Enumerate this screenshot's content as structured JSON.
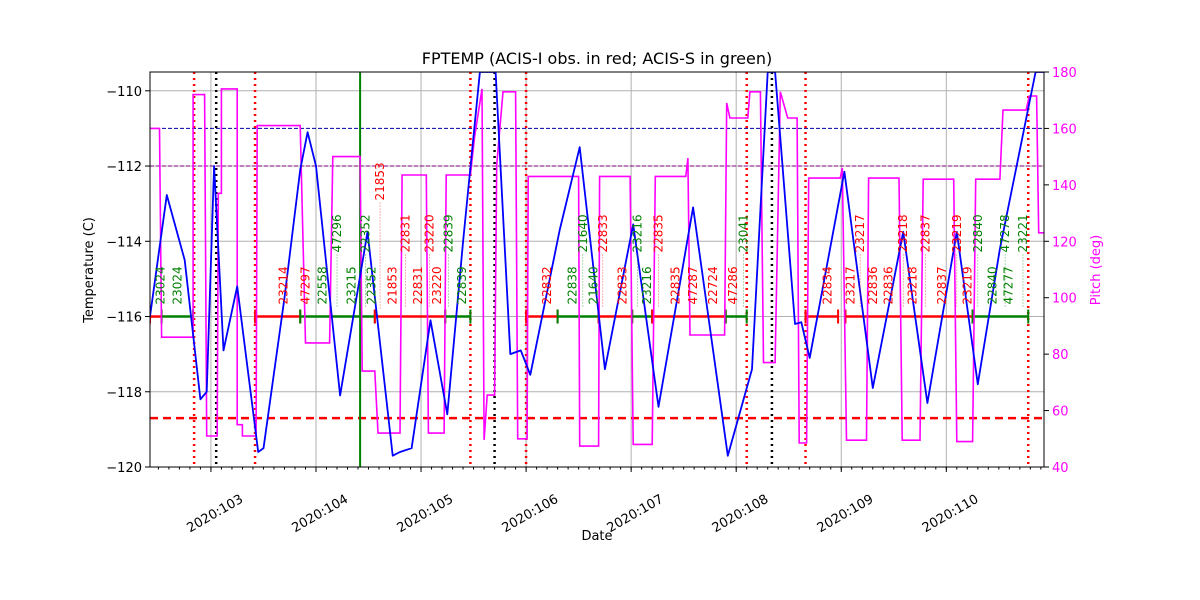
{
  "chart_data": {
    "type": "line",
    "title": "FPTEMP (ACIS-I obs. in red; ACIS-S in green)",
    "xlabel": "Date",
    "ylabel": "Temperature (C)",
    "y2label": "Pitch (deg)",
    "xlim": [
      102.42,
      110.93
    ],
    "ylim": [
      -120,
      -109.5
    ],
    "y2lim": [
      40,
      180
    ],
    "grid": true,
    "x_ticks": [
      {
        "value": 103,
        "label": "2020:103"
      },
      {
        "value": 104,
        "label": "2020:104"
      },
      {
        "value": 105,
        "label": "2020:105"
      },
      {
        "value": 106,
        "label": "2020:106"
      },
      {
        "value": 107,
        "label": "2020:107"
      },
      {
        "value": 108,
        "label": "2020:108"
      },
      {
        "value": 109,
        "label": "2020:109"
      },
      {
        "value": 110,
        "label": "2020:110"
      }
    ],
    "y_ticks": [
      -120,
      -118,
      -116,
      -114,
      -112,
      -110
    ],
    "y2_ticks": [
      40,
      60,
      80,
      100,
      120,
      140,
      160,
      180
    ],
    "colors": {
      "temperature": "#0000ff",
      "pitch": "#ff00ff",
      "acis_i": "#ff0000",
      "acis_s": "#008000"
    },
    "temperature": [
      [
        102.42,
        -116.0
      ],
      [
        102.58,
        -112.77
      ],
      [
        102.75,
        -114.5
      ],
      [
        102.9,
        -118.2
      ],
      [
        102.96,
        -118.0
      ],
      [
        103.03,
        -112.0
      ],
      [
        103.12,
        -116.9
      ],
      [
        103.25,
        -115.2
      ],
      [
        103.45,
        -119.6
      ],
      [
        103.5,
        -119.5
      ],
      [
        103.7,
        -115.5
      ],
      [
        103.85,
        -112.1
      ],
      [
        103.92,
        -111.1
      ],
      [
        104.0,
        -112.0
      ],
      [
        104.23,
        -118.1
      ],
      [
        104.49,
        -113.75
      ],
      [
        104.73,
        -119.7
      ],
      [
        104.8,
        -119.6
      ],
      [
        104.91,
        -119.5
      ],
      [
        105.09,
        -116.1
      ],
      [
        105.25,
        -118.6
      ],
      [
        105.4,
        -114.0
      ],
      [
        105.56,
        -109.5
      ],
      [
        105.71,
        -109.5
      ],
      [
        105.85,
        -117.0
      ],
      [
        105.95,
        -116.9
      ],
      [
        106.04,
        -117.55
      ],
      [
        106.32,
        -113.7
      ],
      [
        106.51,
        -111.5
      ],
      [
        106.75,
        -117.4
      ],
      [
        107.02,
        -113.55
      ],
      [
        107.26,
        -118.4
      ],
      [
        107.59,
        -113.1
      ],
      [
        107.92,
        -119.7
      ],
      [
        108.15,
        -117.4
      ],
      [
        108.3,
        -109.5
      ],
      [
        108.37,
        -109.5
      ],
      [
        108.56,
        -116.2
      ],
      [
        108.62,
        -116.15
      ],
      [
        108.7,
        -117.1
      ],
      [
        109.03,
        -112.15
      ],
      [
        109.3,
        -117.9
      ],
      [
        109.59,
        -113.75
      ],
      [
        109.82,
        -118.3
      ],
      [
        110.1,
        -113.75
      ],
      [
        110.3,
        -117.8
      ],
      [
        110.51,
        -114.2
      ],
      [
        110.85,
        -109.5
      ],
      [
        110.93,
        -109.5
      ]
    ],
    "pitch": [
      [
        102.42,
        160
      ],
      [
        102.51,
        160
      ],
      [
        102.53,
        86
      ],
      [
        102.83,
        86
      ],
      [
        102.83,
        172
      ],
      [
        102.94,
        172
      ],
      [
        102.96,
        51
      ],
      [
        103.06,
        51
      ],
      [
        103.07,
        137
      ],
      [
        103.1,
        137
      ],
      [
        103.1,
        174
      ],
      [
        103.13,
        174
      ],
      [
        103.25,
        174
      ],
      [
        103.25,
        55
      ],
      [
        103.3,
        55
      ],
      [
        103.3,
        51
      ],
      [
        103.43,
        51
      ],
      [
        103.44,
        161
      ],
      [
        103.85,
        161
      ],
      [
        103.9,
        84
      ],
      [
        104.13,
        84
      ],
      [
        104.16,
        150
      ],
      [
        104.42,
        150
      ],
      [
        104.44,
        74
      ],
      [
        104.56,
        74
      ],
      [
        104.59,
        52
      ],
      [
        104.8,
        52
      ],
      [
        104.82,
        143.5
      ],
      [
        105.05,
        143.5
      ],
      [
        105.07,
        52
      ],
      [
        105.22,
        52
      ],
      [
        105.24,
        143.5
      ],
      [
        105.47,
        143.5
      ],
      [
        105.51,
        157
      ],
      [
        105.58,
        174
      ],
      [
        105.6,
        49.6
      ],
      [
        105.63,
        65.5
      ],
      [
        105.7,
        65.5
      ],
      [
        105.72,
        147
      ],
      [
        105.78,
        173
      ],
      [
        105.9,
        173
      ],
      [
        105.92,
        50
      ],
      [
        106.01,
        50
      ],
      [
        106.02,
        143
      ],
      [
        106.5,
        143
      ],
      [
        106.51,
        47.4
      ],
      [
        106.69,
        47.4
      ],
      [
        106.7,
        143
      ],
      [
        106.99,
        143
      ],
      [
        107.02,
        48
      ],
      [
        107.2,
        48
      ],
      [
        107.23,
        143
      ],
      [
        107.52,
        143
      ],
      [
        107.54,
        149.5
      ],
      [
        107.56,
        86.8
      ],
      [
        107.89,
        86.8
      ],
      [
        107.91,
        169
      ],
      [
        107.94,
        163.7
      ],
      [
        108.11,
        163.7
      ],
      [
        108.13,
        173
      ],
      [
        108.23,
        173
      ],
      [
        108.26,
        77
      ],
      [
        108.37,
        77
      ],
      [
        108.42,
        173
      ],
      [
        108.49,
        163.7
      ],
      [
        108.58,
        163.7
      ],
      [
        108.6,
        48.5
      ],
      [
        108.67,
        48.5
      ],
      [
        108.69,
        142.4
      ],
      [
        108.99,
        142.4
      ],
      [
        109.01,
        146
      ],
      [
        109.05,
        49.5
      ],
      [
        109.24,
        49.5
      ],
      [
        109.26,
        142.4
      ],
      [
        109.55,
        142.4
      ],
      [
        109.58,
        49.5
      ],
      [
        109.75,
        49.5
      ],
      [
        109.78,
        142
      ],
      [
        110.07,
        142
      ],
      [
        110.1,
        49
      ],
      [
        110.25,
        49
      ],
      [
        110.28,
        142
      ],
      [
        110.51,
        142
      ],
      [
        110.54,
        166.5
      ],
      [
        110.76,
        166.5
      ],
      [
        110.79,
        171.5
      ],
      [
        110.86,
        171.5
      ],
      [
        110.88,
        123
      ],
      [
        110.93,
        123
      ]
    ],
    "hlines": [
      {
        "value": -111,
        "color": "#0000aa",
        "style": "dashed"
      },
      {
        "value": -112,
        "color": "#800080",
        "style": "dashed"
      },
      {
        "value": -118.7,
        "color": "#ff0000",
        "style": "dashed-thick"
      }
    ],
    "vlines": [
      {
        "value": 102.84,
        "color": "#ff0000",
        "style": "dotted"
      },
      {
        "value": 103.42,
        "color": "#ff0000",
        "style": "dotted"
      },
      {
        "value": 105.47,
        "color": "#ff0000",
        "style": "dotted"
      },
      {
        "value": 106.0,
        "color": "#ff0000",
        "style": "dotted"
      },
      {
        "value": 108.1,
        "color": "#ff0000",
        "style": "dotted"
      },
      {
        "value": 108.66,
        "color": "#ff0000",
        "style": "dotted"
      },
      {
        "value": 110.78,
        "color": "#ff0000",
        "style": "dotted"
      },
      {
        "value": 103.05,
        "color": "#000000",
        "style": "dotted"
      },
      {
        "value": 105.7,
        "color": "#000000",
        "style": "dotted"
      },
      {
        "value": 108.34,
        "color": "#000000",
        "style": "dotted"
      },
      {
        "value": 104.42,
        "color": "#008000",
        "style": "solid"
      }
    ],
    "obs_segments": [
      {
        "start": 102.42,
        "end": 102.53,
        "inst": "I"
      },
      {
        "start": 102.53,
        "end": 102.83,
        "inst": "S"
      },
      {
        "start": 103.42,
        "end": 103.85,
        "inst": "I"
      },
      {
        "start": 103.85,
        "end": 104.56,
        "inst": "S"
      },
      {
        "start": 104.56,
        "end": 105.23,
        "inst": "I"
      },
      {
        "start": 105.23,
        "end": 105.47,
        "inst": "S"
      },
      {
        "start": 106.0,
        "end": 106.3,
        "inst": "I"
      },
      {
        "start": 106.3,
        "end": 106.69,
        "inst": "S"
      },
      {
        "start": 106.69,
        "end": 107.01,
        "inst": "I"
      },
      {
        "start": 107.01,
        "end": 107.2,
        "inst": "S"
      },
      {
        "start": 107.2,
        "end": 107.9,
        "inst": "I"
      },
      {
        "start": 107.9,
        "end": 108.1,
        "inst": "S"
      },
      {
        "start": 108.66,
        "end": 108.97,
        "inst": "I"
      },
      {
        "start": 109.04,
        "end": 110.25,
        "inst": "I"
      },
      {
        "start": 110.25,
        "end": 110.78,
        "inst": "S"
      }
    ],
    "obs_level": -116,
    "obs_labels": [
      {
        "day": 102.52,
        "text": "23024",
        "inst": "S"
      },
      {
        "day": 102.68,
        "text": "23024",
        "inst": "S"
      },
      {
        "day": 103.69,
        "text": "23214",
        "inst": "I"
      },
      {
        "day": 103.9,
        "text": "47297",
        "inst": "I"
      },
      {
        "day": 104.06,
        "text": "22558",
        "inst": "S"
      },
      {
        "day": 104.2,
        "text": "47296",
        "inst": "S"
      },
      {
        "day": 104.34,
        "text": "23215",
        "inst": "S"
      },
      {
        "day": 104.47,
        "text": "22352",
        "inst": "S"
      },
      {
        "day": 104.53,
        "text": "22352",
        "inst": "S"
      },
      {
        "day": 104.61,
        "text": "21853",
        "inst": "I"
      },
      {
        "day": 104.73,
        "text": "21853",
        "inst": "I"
      },
      {
        "day": 104.85,
        "text": "22831",
        "inst": "I"
      },
      {
        "day": 104.97,
        "text": "22831",
        "inst": "I"
      },
      {
        "day": 105.08,
        "text": "23220",
        "inst": "I"
      },
      {
        "day": 105.15,
        "text": "23220",
        "inst": "I"
      },
      {
        "day": 105.26,
        "text": "22839",
        "inst": "S"
      },
      {
        "day": 105.39,
        "text": "22839",
        "inst": "S"
      },
      {
        "day": 106.2,
        "text": "22832",
        "inst": "I"
      },
      {
        "day": 106.44,
        "text": "22838",
        "inst": "S"
      },
      {
        "day": 106.54,
        "text": "21640",
        "inst": "S"
      },
      {
        "day": 106.64,
        "text": "21640",
        "inst": "S"
      },
      {
        "day": 106.73,
        "text": "22833",
        "inst": "I"
      },
      {
        "day": 106.92,
        "text": "22833",
        "inst": "I"
      },
      {
        "day": 107.06,
        "text": "23216",
        "inst": "S"
      },
      {
        "day": 107.15,
        "text": "23216",
        "inst": "S"
      },
      {
        "day": 107.26,
        "text": "22835",
        "inst": "I"
      },
      {
        "day": 107.42,
        "text": "22835",
        "inst": "I"
      },
      {
        "day": 107.59,
        "text": "47287",
        "inst": "I"
      },
      {
        "day": 107.78,
        "text": "22724",
        "inst": "I"
      },
      {
        "day": 107.97,
        "text": "47286",
        "inst": "I"
      },
      {
        "day": 108.07,
        "text": "23041",
        "inst": "S"
      },
      {
        "day": 108.87,
        "text": "22834",
        "inst": "I"
      },
      {
        "day": 109.09,
        "text": "23217",
        "inst": "I"
      },
      {
        "day": 109.18,
        "text": "23217",
        "inst": "I"
      },
      {
        "day": 109.3,
        "text": "22836",
        "inst": "I"
      },
      {
        "day": 109.45,
        "text": "22836",
        "inst": "I"
      },
      {
        "day": 109.59,
        "text": "23218",
        "inst": "I"
      },
      {
        "day": 109.68,
        "text": "23218",
        "inst": "I"
      },
      {
        "day": 109.8,
        "text": "22837",
        "inst": "I"
      },
      {
        "day": 109.96,
        "text": "22837",
        "inst": "I"
      },
      {
        "day": 110.1,
        "text": "23219",
        "inst": "I"
      },
      {
        "day": 110.2,
        "text": "23219",
        "inst": "I"
      },
      {
        "day": 110.3,
        "text": "22840",
        "inst": "S"
      },
      {
        "day": 110.44,
        "text": "22840",
        "inst": "S"
      },
      {
        "day": 110.56,
        "text": "47278",
        "inst": "S"
      },
      {
        "day": 110.59,
        "text": "47277",
        "inst": "S"
      },
      {
        "day": 110.73,
        "text": "23221",
        "inst": "S"
      }
    ]
  }
}
